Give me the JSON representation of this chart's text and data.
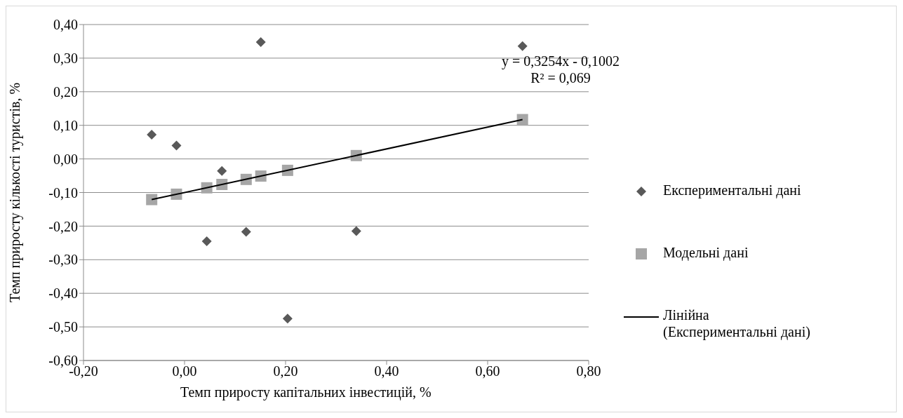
{
  "chart_data": {
    "type": "scatter",
    "xlabel": "Темп приросту капітальних інвестицій, %",
    "ylabel": "Темп приросту кількості туристів, %",
    "annotations": [
      "y = 0,3254x - 0,1002",
      "R² = 0,069"
    ],
    "xlim": [
      -0.2,
      0.8
    ],
    "xticks": [
      {
        "value": -0.2,
        "label": "-0,20"
      },
      {
        "value": 0,
        "label": "0,00"
      },
      {
        "value": 0.2,
        "label": "0,20"
      },
      {
        "value": 0.4,
        "label": "0,40"
      },
      {
        "value": 0.6,
        "label": "0,60"
      },
      {
        "value": 0.8,
        "label": "0,80"
      }
    ],
    "ylim": [
      -0.6,
      0.4
    ],
    "yticks": [
      {
        "value": -0.6,
        "label": "-0,60"
      },
      {
        "value": -0.5,
        "label": "-0,50"
      },
      {
        "value": -0.4,
        "label": "-0,40"
      },
      {
        "value": -0.3,
        "label": "-0,30"
      },
      {
        "value": -0.2,
        "label": "-0,20"
      },
      {
        "value": -0.1,
        "label": "-0,10"
      },
      {
        "value": 0,
        "label": "0,00"
      },
      {
        "value": 0.1,
        "label": "0,10"
      },
      {
        "value": 0.2,
        "label": "0,20"
      },
      {
        "value": 0.3,
        "label": "0,30"
      },
      {
        "value": 0.4,
        "label": "0,40"
      }
    ],
    "grid": "y",
    "legend": "right",
    "series": [
      {
        "name": "Експериментальні дані",
        "type": "scatter",
        "marker": "diamond",
        "color": "#595959",
        "x": [
          -0.065,
          -0.016,
          0.044,
          0.074,
          0.122,
          0.151,
          0.204,
          0.34,
          0.669
        ],
        "values": [
          0.072,
          0.04,
          -0.245,
          -0.036,
          -0.217,
          0.348,
          -0.475,
          -0.215,
          0.336
        ]
      },
      {
        "name": "Модельні дані",
        "type": "scatter",
        "marker": "square",
        "color": "#a6a6a6",
        "x": [
          -0.065,
          -0.016,
          0.044,
          0.074,
          0.122,
          0.151,
          0.204,
          0.34,
          0.669
        ],
        "values": [
          -0.121,
          -0.105,
          -0.086,
          -0.076,
          -0.061,
          -0.051,
          -0.034,
          0.01,
          0.117
        ]
      },
      {
        "name": "Лінійна (Експериментальні дані)",
        "type": "line",
        "marker": "none",
        "line_style": "solid",
        "color": "#000000",
        "x": [
          -0.065,
          0.669
        ],
        "values": [
          -0.121,
          0.117
        ]
      }
    ]
  }
}
